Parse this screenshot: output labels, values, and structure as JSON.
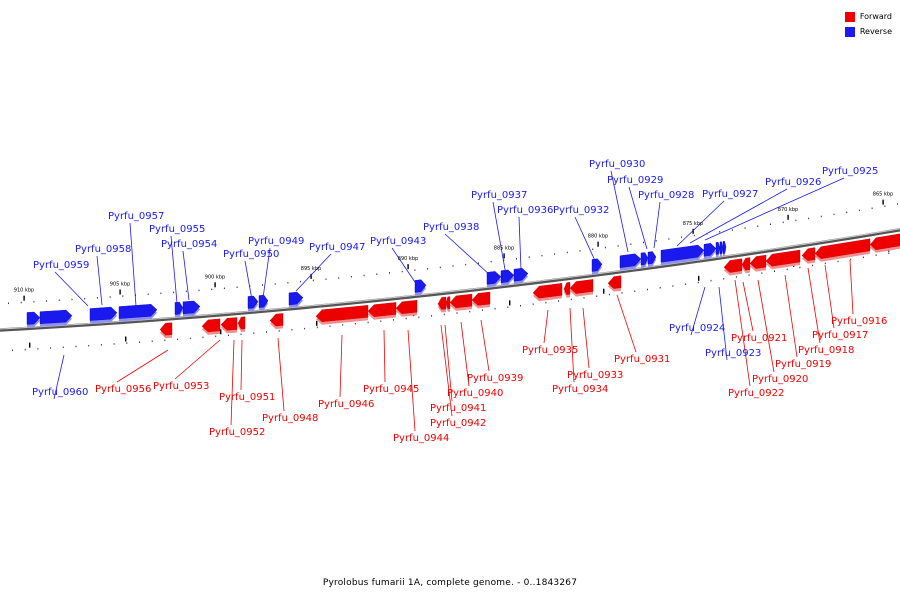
{
  "legend": {
    "forward_label": "Forward",
    "reverse_label": "Reverse",
    "forward_color": "#ee0000",
    "reverse_color": "#1a1aee"
  },
  "footer": {
    "caption": "Pyrolobus fumarii 1A, complete genome. - 0..1843267"
  },
  "kbp_marks": [
    "910 kbp",
    "905 kbp",
    "900 kbp",
    "895 kbp",
    "890 kbp",
    "885 kbp",
    "880 kbp",
    "875 kbp",
    "870 kbp",
    "865 kbp"
  ],
  "genes": [
    {
      "id": "Pyrfu_0960",
      "strand": "reverse"
    },
    {
      "id": "Pyrfu_0959",
      "strand": "reverse"
    },
    {
      "id": "Pyrfu_0958",
      "strand": "reverse"
    },
    {
      "id": "Pyrfu_0957",
      "strand": "reverse"
    },
    {
      "id": "Pyrfu_0956",
      "strand": "forward"
    },
    {
      "id": "Pyrfu_0955",
      "strand": "reverse"
    },
    {
      "id": "Pyrfu_0954",
      "strand": "reverse"
    },
    {
      "id": "Pyrfu_0953",
      "strand": "forward"
    },
    {
      "id": "Pyrfu_0952",
      "strand": "forward"
    },
    {
      "id": "Pyrfu_0951",
      "strand": "forward"
    },
    {
      "id": "Pyrfu_0950",
      "strand": "reverse"
    },
    {
      "id": "Pyrfu_0949",
      "strand": "reverse"
    },
    {
      "id": "Pyrfu_0948",
      "strand": "forward"
    },
    {
      "id": "Pyrfu_0947",
      "strand": "reverse"
    },
    {
      "id": "Pyrfu_0946",
      "strand": "forward"
    },
    {
      "id": "Pyrfu_0945",
      "strand": "forward"
    },
    {
      "id": "Pyrfu_0944",
      "strand": "forward"
    },
    {
      "id": "Pyrfu_0943",
      "strand": "reverse"
    },
    {
      "id": "Pyrfu_0942",
      "strand": "forward"
    },
    {
      "id": "Pyrfu_0941",
      "strand": "forward"
    },
    {
      "id": "Pyrfu_0940",
      "strand": "forward"
    },
    {
      "id": "Pyrfu_0939",
      "strand": "forward"
    },
    {
      "id": "Pyrfu_0938",
      "strand": "reverse"
    },
    {
      "id": "Pyrfu_0937",
      "strand": "reverse"
    },
    {
      "id": "Pyrfu_0936",
      "strand": "reverse"
    },
    {
      "id": "Pyrfu_0935",
      "strand": "forward"
    },
    {
      "id": "Pyrfu_0934",
      "strand": "forward"
    },
    {
      "id": "Pyrfu_0933",
      "strand": "forward"
    },
    {
      "id": "Pyrfu_0932",
      "strand": "reverse"
    },
    {
      "id": "Pyrfu_0931",
      "strand": "forward"
    },
    {
      "id": "Pyrfu_0930",
      "strand": "reverse"
    },
    {
      "id": "Pyrfu_0929",
      "strand": "reverse"
    },
    {
      "id": "Pyrfu_0928",
      "strand": "reverse"
    },
    {
      "id": "Pyrfu_0927",
      "strand": "reverse"
    },
    {
      "id": "Pyrfu_0926",
      "strand": "reverse"
    },
    {
      "id": "Pyrfu_0925",
      "strand": "reverse"
    },
    {
      "id": "Pyrfu_0924",
      "strand": "reverse"
    },
    {
      "id": "Pyrfu_0923",
      "strand": "reverse"
    },
    {
      "id": "Pyrfu_0922",
      "strand": "forward"
    },
    {
      "id": "Pyrfu_0921",
      "strand": "forward"
    },
    {
      "id": "Pyrfu_0920",
      "strand": "forward"
    },
    {
      "id": "Pyrfu_0919",
      "strand": "forward"
    },
    {
      "id": "Pyrfu_0918",
      "strand": "forward"
    },
    {
      "id": "Pyrfu_0917",
      "strand": "forward"
    },
    {
      "id": "Pyrfu_0916",
      "strand": "forward"
    }
  ]
}
